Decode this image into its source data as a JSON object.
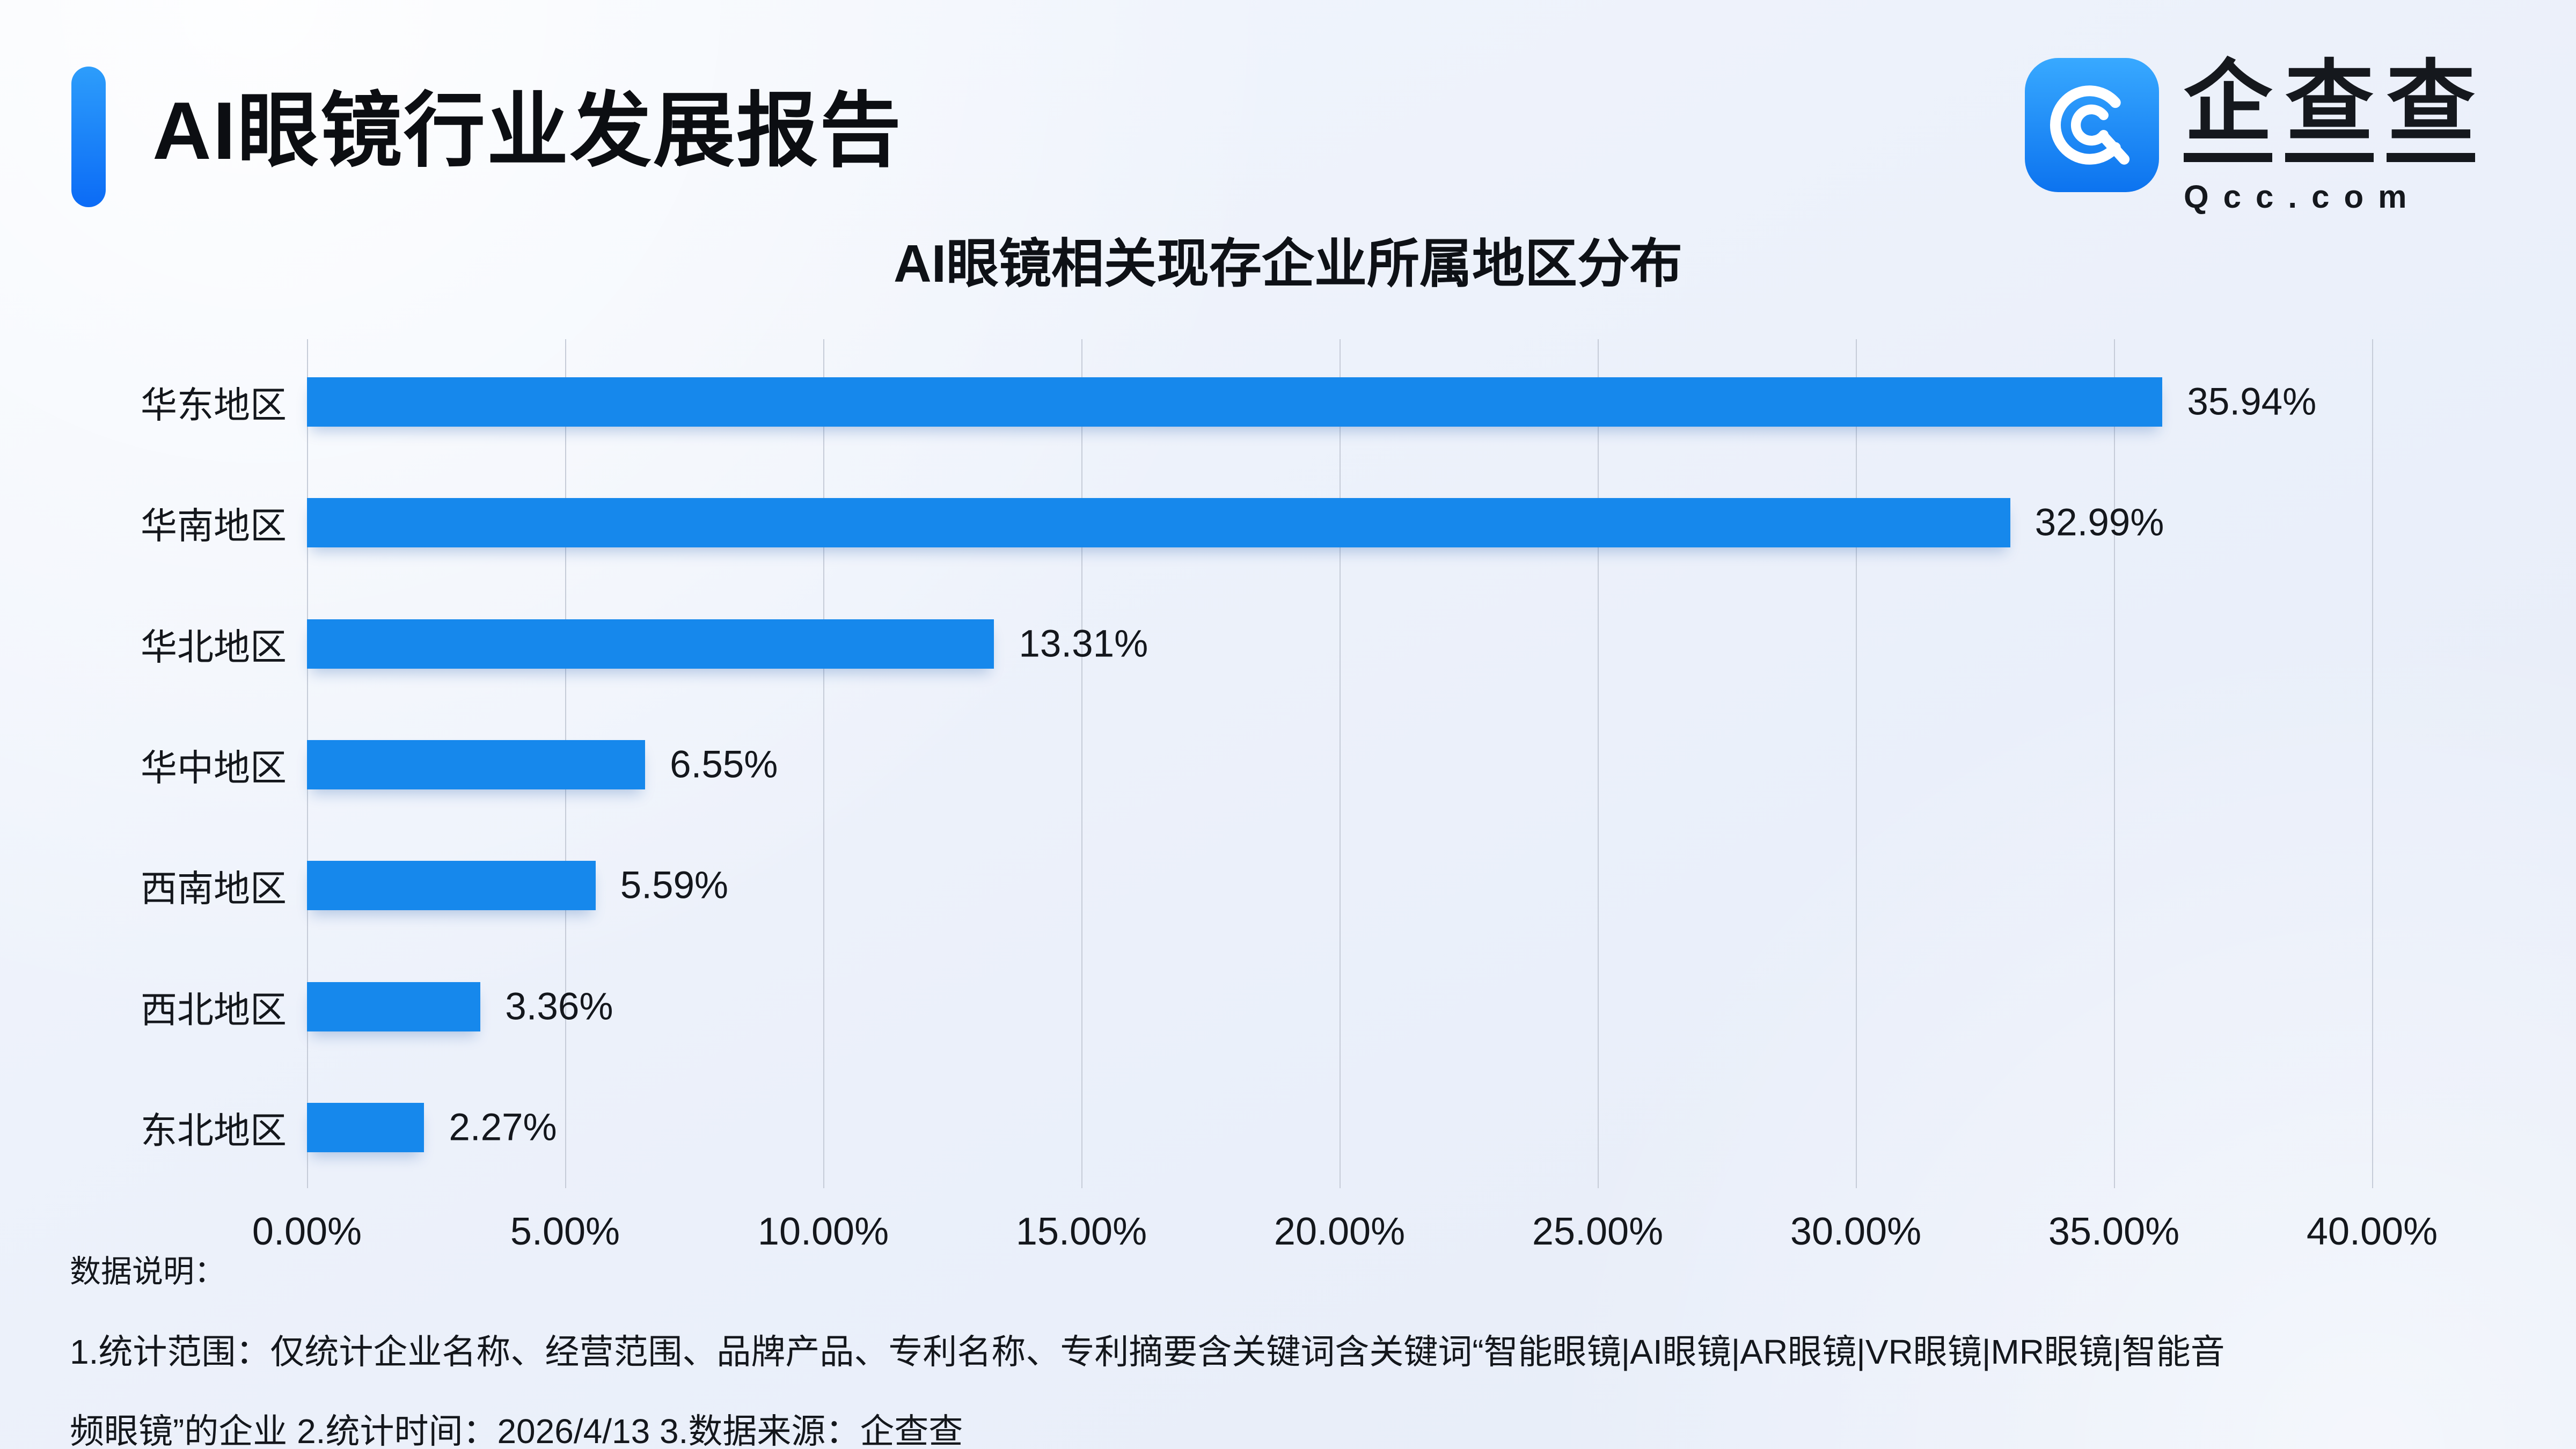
{
  "header": {
    "title": "AI眼镜行业发展报告"
  },
  "logo": {
    "brand": "企查查",
    "domain": "Qcc.com",
    "icon": "qcc-spiral-q-icon",
    "icon_bg_top": "#38a9ff",
    "icon_bg_bottom": "#0c73ef"
  },
  "chart_data": {
    "type": "bar",
    "orientation": "horizontal",
    "title": "AI眼镜相关现存企业所属地区分布",
    "categories": [
      "华东地区",
      "华南地区",
      "华北地区",
      "华中地区",
      "西南地区",
      "西北地区",
      "东北地区"
    ],
    "values": [
      35.94,
      32.99,
      13.31,
      6.55,
      5.59,
      3.36,
      2.27
    ],
    "value_labels": [
      "35.94%",
      "32.99%",
      "13.31%",
      "6.55%",
      "5.59%",
      "3.36%",
      "2.27%"
    ],
    "xlim": [
      0,
      40
    ],
    "x_ticks": [
      "0.00%",
      "5.00%",
      "10.00%",
      "15.00%",
      "20.00%",
      "25.00%",
      "30.00%",
      "35.00%",
      "40.00%"
    ],
    "grid": true,
    "legend": "none",
    "bar_color": "#1688ec",
    "gridline_color": "#c6ccd8"
  },
  "footer": {
    "label": "数据说明：",
    "lines": [
      "1.统计范围：仅统计企业名称、经营范围、品牌产品、专利名称、专利摘要含关键词含关键词“智能眼镜|AI眼镜|AR眼镜|VR眼镜|MR眼镜|智能音",
      "频眼镜”的企业  2.统计时间：2026/4/13  3.数据来源：企查查"
    ]
  }
}
